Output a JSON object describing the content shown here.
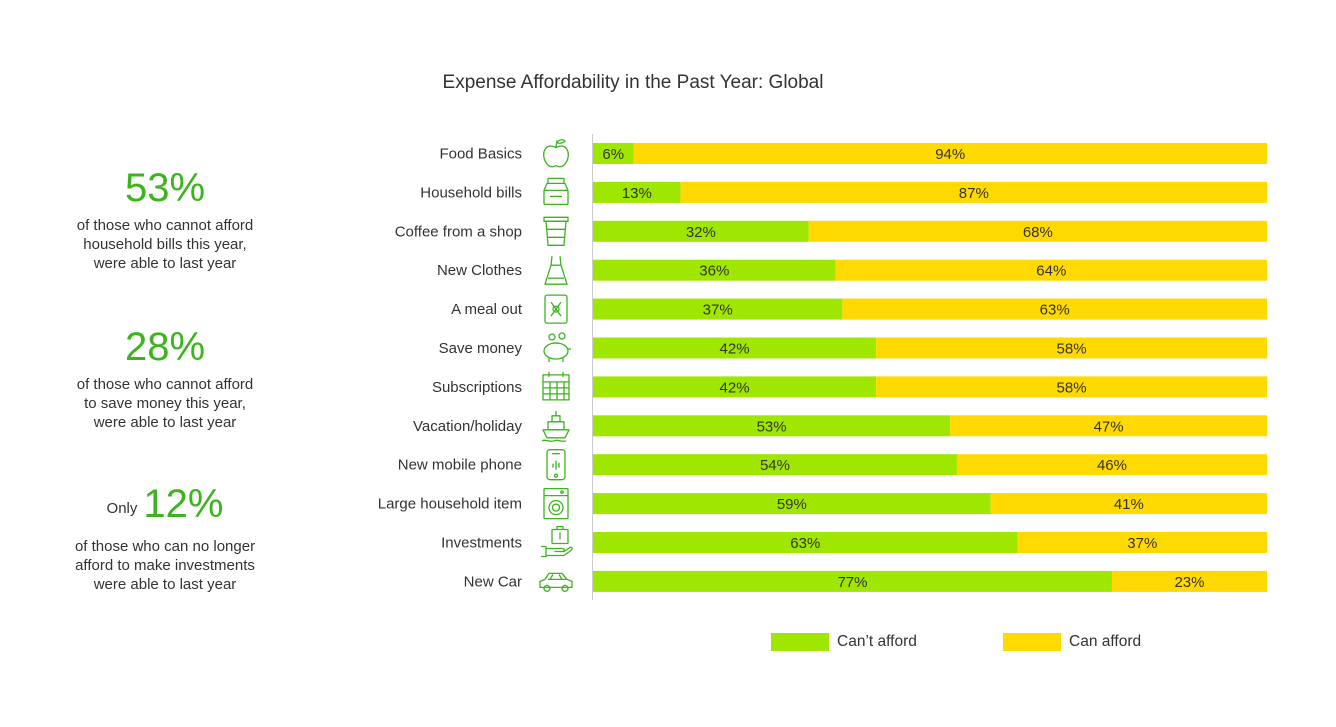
{
  "chart_data": {
    "type": "bar",
    "orientation": "horizontal",
    "stacked": true,
    "title": "Expense Affordability in the Past Year: Global",
    "categories": [
      "Food Basics",
      "Household bills",
      "Coffee from a shop",
      "New Clothes",
      "A meal out",
      "Save money",
      "Subscriptions",
      "Vacation/holiday",
      "New mobile phone",
      "Large household item",
      "Investments",
      "New Car"
    ],
    "series": [
      {
        "name": "Can’t afford",
        "color": "#9fe600",
        "values": [
          6,
          13,
          32,
          36,
          37,
          42,
          42,
          53,
          54,
          59,
          63,
          77
        ]
      },
      {
        "name": "Can afford",
        "color": "#ffd900",
        "values": [
          94,
          87,
          68,
          64,
          63,
          58,
          58,
          47,
          46,
          41,
          37,
          23
        ]
      }
    ],
    "value_suffix": "%",
    "xlim": [
      0,
      100
    ],
    "legend_position": "bottom",
    "grid": false,
    "icons": [
      "apple-icon",
      "bills-icon",
      "coffee-cup-icon",
      "dress-icon",
      "meal-icon",
      "piggy-bank-icon",
      "calendar-icon",
      "ship-icon",
      "mobile-phone-icon",
      "washing-machine-icon",
      "investment-icon",
      "car-icon"
    ]
  },
  "stats": [
    {
      "prefix": "",
      "value": "53%",
      "lines": [
        "of those who cannot afford",
        "household bills this year,",
        "were able to last year"
      ]
    },
    {
      "prefix": "",
      "value": "28%",
      "lines": [
        "of those who cannot afford",
        "to save money this year,",
        "were able to last year"
      ]
    },
    {
      "prefix": "Only",
      "value": "12%",
      "lines": [
        "of those who can no longer",
        "afford to make investments",
        "were able to last year"
      ]
    }
  ]
}
